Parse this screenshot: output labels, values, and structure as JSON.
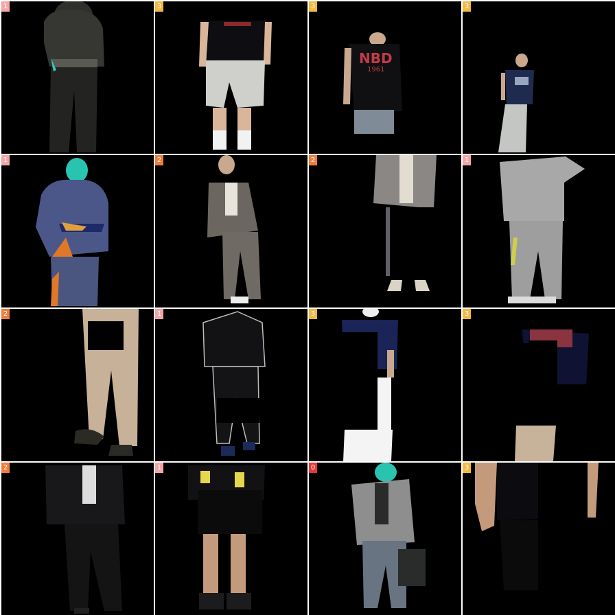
{
  "grid": {
    "tiles": [
      {
        "badge": "1",
        "badge_color": "#f4a6a6",
        "figure": "dark-hoodie-black-pants"
      },
      {
        "badge": "3",
        "badge_color": "#f4b942",
        "figure": "black-tee-grey-shorts"
      },
      {
        "badge": "3",
        "badge_color": "#f4b942",
        "figure": "nbd-tee-jeans"
      },
      {
        "badge": "3",
        "badge_color": "#f4b942",
        "figure": "navy-tee-grey-pants"
      },
      {
        "badge": "1",
        "badge_color": "#f4a6a6",
        "figure": "blue-hoodie-heatmap"
      },
      {
        "badge": "2",
        "badge_color": "#ef7d3c",
        "figure": "grey-suit"
      },
      {
        "badge": "2",
        "badge_color": "#ef7d3c",
        "figure": "grey-blazer-masked"
      },
      {
        "badge": "1",
        "badge_color": "#f4a6a6",
        "figure": "grey-sweatsuit"
      },
      {
        "badge": "2",
        "badge_color": "#ef7d3c",
        "figure": "beige-pants-masked"
      },
      {
        "badge": "1",
        "badge_color": "#f4a6a6",
        "figure": "black-track-suit"
      },
      {
        "badge": "3",
        "badge_color": "#f4b942",
        "figure": "navy-tee-white-pants-masked"
      },
      {
        "badge": "3",
        "badge_color": "#f4b942",
        "figure": "graphic-tee-masked"
      },
      {
        "badge": "2",
        "badge_color": "#ef7d3c",
        "figure": "black-suit"
      },
      {
        "badge": "1",
        "badge_color": "#f4a6a6",
        "figure": "jacket-black-shorts"
      },
      {
        "badge": "0",
        "badge_color": "#e53935",
        "figure": "grey-blazer-bag"
      },
      {
        "badge": "3",
        "badge_color": "#f4b942",
        "figure": "black-tee-closeup-masked"
      }
    ]
  }
}
